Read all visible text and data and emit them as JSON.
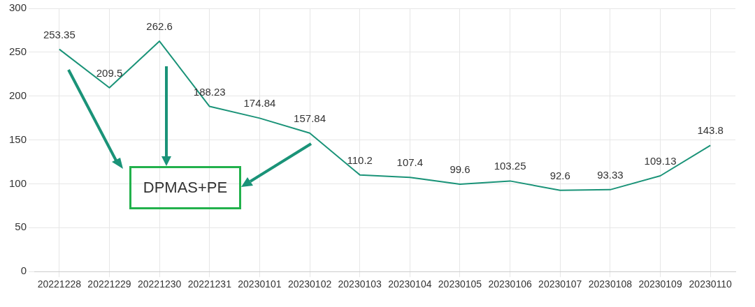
{
  "chart_data": {
    "type": "line",
    "categories": [
      "20221228",
      "20221229",
      "20221230",
      "20221231",
      "20230101",
      "20230102",
      "20230103",
      "20230104",
      "20230105",
      "20230106",
      "20230107",
      "20230108",
      "20230109",
      "20230110"
    ],
    "series": [
      {
        "color": "#1a9378",
        "values": [
          253.35,
          209.5,
          262.6,
          188.23,
          174.84,
          157.84,
          110.2,
          107.4,
          99.6,
          103.25,
          92.6,
          93.33,
          109.13,
          143.8
        ]
      }
    ],
    "ylim": [
      0,
      300
    ],
    "yticks": [
      0,
      50,
      100,
      150,
      200,
      250,
      300
    ],
    "grid": true,
    "legend": false,
    "marker": "none",
    "line_style": "solid",
    "data_labels": true,
    "annotations": [
      "DPMAS+PE"
    ]
  }
}
